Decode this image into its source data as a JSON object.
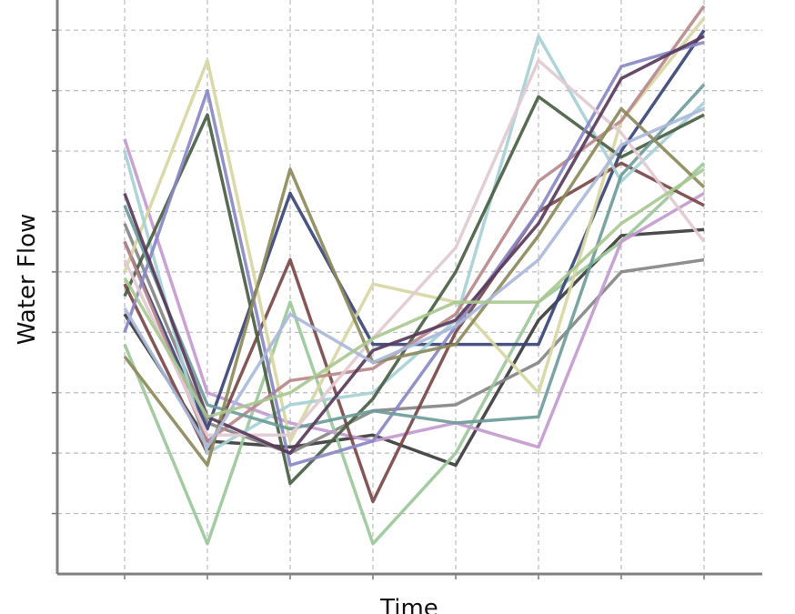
{
  "chart_data": {
    "type": "line",
    "y_label": "Water Flow",
    "x_label": "Time",
    "categories": [
      null,
      null,
      null,
      null,
      null,
      null,
      null,
      null
    ],
    "ylim": [
      0,
      9.5
    ],
    "yticks": [
      1,
      2,
      3,
      4,
      5,
      6,
      7,
      8,
      9
    ],
    "grid": true,
    "series": [
      {
        "color": "#3c3c3c",
        "values": [
          4.3,
          2.2,
          2.1,
          2.3,
          1.8,
          4.2,
          5.6,
          5.7
        ]
      },
      {
        "color": "#858585",
        "values": [
          5.8,
          2.5,
          2.0,
          2.7,
          2.8,
          3.5,
          5.0,
          5.2
        ]
      },
      {
        "color": "#9cc89a",
        "values": [
          3.8,
          0.5,
          4.5,
          0.5,
          2.0,
          4.5,
          5.5,
          6.8
        ]
      },
      {
        "color": "#c49ad0",
        "values": [
          7.2,
          3.0,
          2.5,
          2.2,
          2.5,
          2.1,
          5.5,
          6.3
        ]
      },
      {
        "color": "#3a4578",
        "values": [
          5.5,
          2.4,
          6.3,
          3.8,
          3.8,
          3.8,
          7.0,
          9.0
        ]
      },
      {
        "color": "#7a4848",
        "values": [
          4.8,
          2.0,
          5.2,
          1.2,
          4.0,
          6.0,
          6.8,
          6.1
        ]
      },
      {
        "color": "#d6d6a2",
        "values": [
          5.0,
          8.5,
          2.2,
          4.8,
          4.5,
          3.0,
          7.5,
          9.2
        ]
      },
      {
        "color": "#a6d0d6",
        "values": [
          7.0,
          2.0,
          2.8,
          3.0,
          4.2,
          8.9,
          6.5,
          7.8
        ]
      },
      {
        "color": "#4a5e44",
        "values": [
          4.6,
          7.6,
          1.5,
          2.9,
          5.0,
          7.9,
          6.9,
          7.6
        ]
      },
      {
        "color": "#b8888c",
        "values": [
          5.5,
          2.2,
          3.2,
          3.4,
          4.3,
          6.5,
          7.5,
          9.4
        ]
      },
      {
        "color": "#8a88c4",
        "values": [
          4.0,
          8.0,
          1.8,
          2.2,
          4.1,
          6.0,
          8.4,
          8.8
        ]
      },
      {
        "color": "#6f9c9a",
        "values": [
          6.1,
          2.8,
          2.4,
          2.7,
          2.5,
          2.6,
          6.6,
          8.1
        ]
      },
      {
        "color": "#e2cad2",
        "values": [
          5.2,
          2.3,
          2.3,
          3.9,
          5.4,
          8.5,
          7.3,
          5.5
        ]
      },
      {
        "color": "#8c8a5a",
        "values": [
          3.6,
          1.8,
          6.7,
          3.5,
          3.8,
          5.6,
          7.7,
          6.4
        ]
      },
      {
        "color": "#5a3a5c",
        "values": [
          6.3,
          2.6,
          2.0,
          3.7,
          4.2,
          5.8,
          8.2,
          8.9
        ]
      },
      {
        "color": "#aab8da",
        "values": [
          4.4,
          2.1,
          4.3,
          3.5,
          4.1,
          5.2,
          7.1,
          7.7
        ]
      },
      {
        "color": "#a8c890",
        "values": [
          4.9,
          2.6,
          3.0,
          3.9,
          4.5,
          4.5,
          5.8,
          6.7
        ]
      }
    ]
  }
}
